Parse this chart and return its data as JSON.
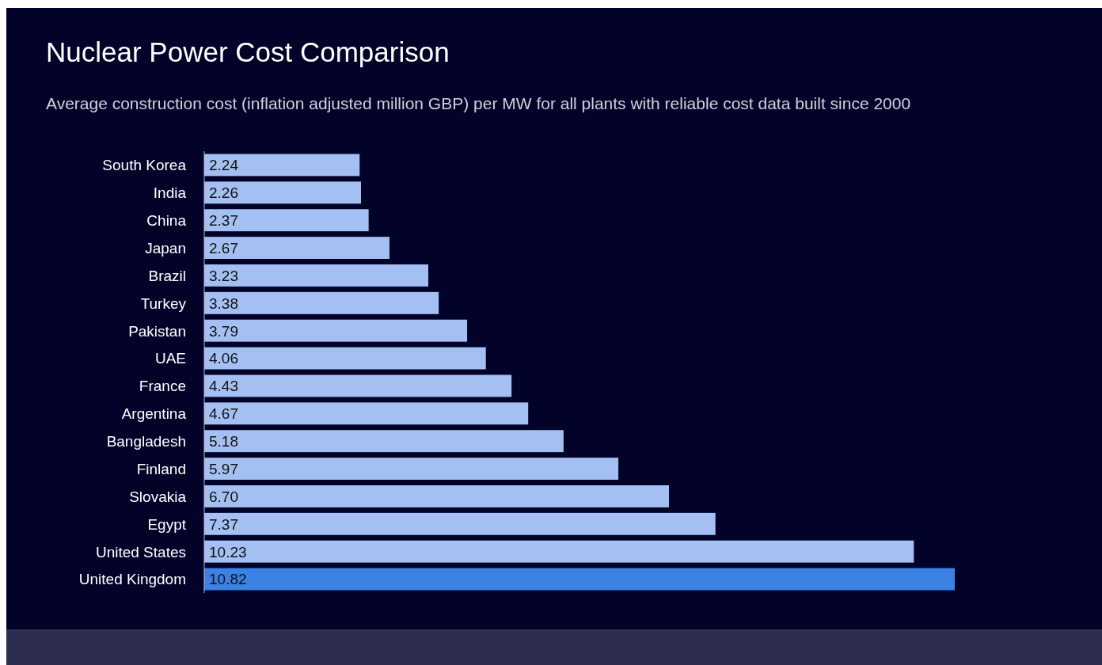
{
  "chart_data": {
    "type": "bar",
    "orientation": "horizontal",
    "title": "Nuclear Power Cost Comparison",
    "subtitle": "Average construction cost (inflation adjusted million GBP) per MW for all plants with reliable cost data built since 2000",
    "categories": [
      "South Korea",
      "India",
      "China",
      "Japan",
      "Brazil",
      "Turkey",
      "Pakistan",
      "UAE",
      "France",
      "Argentina",
      "Bangladesh",
      "Finland",
      "Slovakia",
      "Egypt",
      "United States",
      "United Kingdom"
    ],
    "values": [
      2.24,
      2.26,
      2.37,
      2.67,
      3.23,
      3.38,
      3.79,
      4.06,
      4.43,
      4.67,
      5.18,
      5.97,
      6.7,
      7.37,
      10.23,
      10.82
    ],
    "value_labels": [
      "2.24",
      "2.26",
      "2.37",
      "2.67",
      "3.23",
      "3.38",
      "3.79",
      "4.06",
      "4.43",
      "4.67",
      "5.18",
      "5.97",
      "6.70",
      "7.37",
      "10.23",
      "10.82"
    ],
    "colors": [
      "#a4bff2",
      "#a4bff2",
      "#a4bff2",
      "#a4bff2",
      "#a4bff2",
      "#a4bff2",
      "#a4bff2",
      "#a4bff2",
      "#a4bff2",
      "#a4bff2",
      "#a4bff2",
      "#a4bff2",
      "#a4bff2",
      "#a4bff2",
      "#a4bff2",
      "#3b82e4"
    ]
  }
}
